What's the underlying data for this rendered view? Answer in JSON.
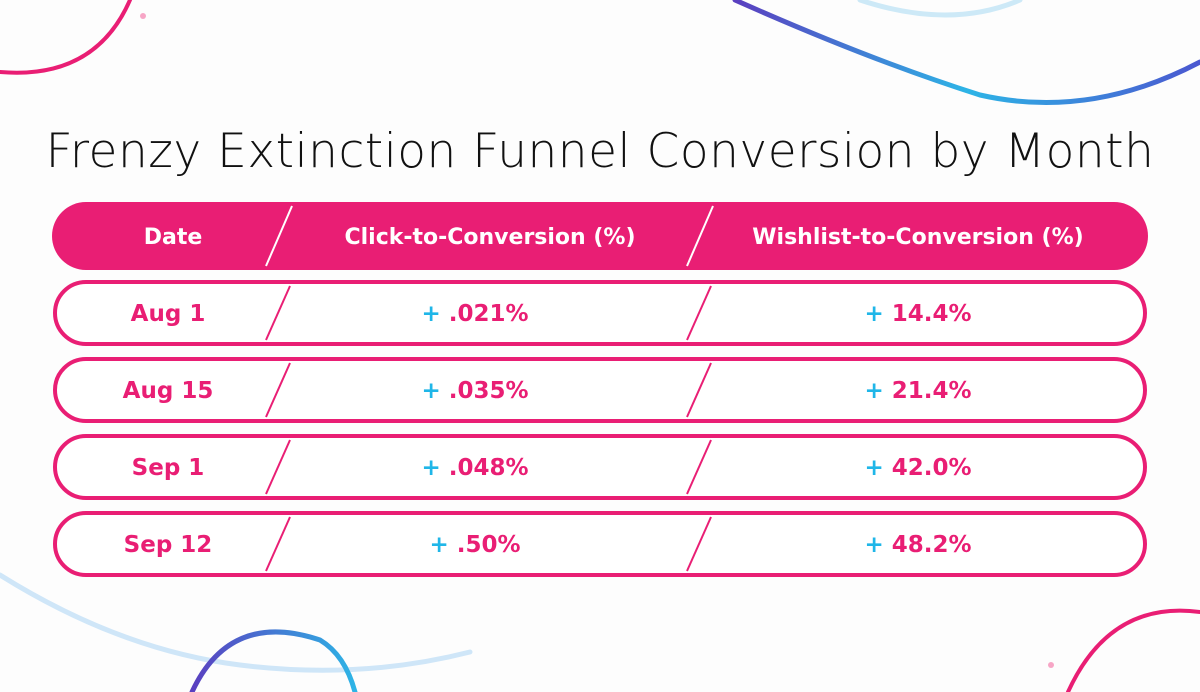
{
  "colors": {
    "accent": "#e91e74",
    "plus": "#1fb6e8",
    "decor_blue": "#2db4e6",
    "decor_purple": "#5a3fc0"
  },
  "chart_data": {
    "type": "table",
    "title": "Frenzy Extinction Funnel Conversion by Month",
    "columns": [
      "Date",
      "Click-to-Conversion (%)",
      "Wishlist-to-Conversion (%)"
    ],
    "rows": [
      {
        "date": "Aug 1",
        "click": ".021%",
        "wishlist": "14.4%"
      },
      {
        "date": "Aug 15",
        "click": ".035%",
        "wishlist": "21.4%"
      },
      {
        "date": "Sep 1",
        "click": ".048%",
        "wishlist": "42.0%"
      },
      {
        "date": "Sep 12",
        "click": ".50%",
        "wishlist": "48.2%"
      }
    ],
    "sign": "+"
  }
}
